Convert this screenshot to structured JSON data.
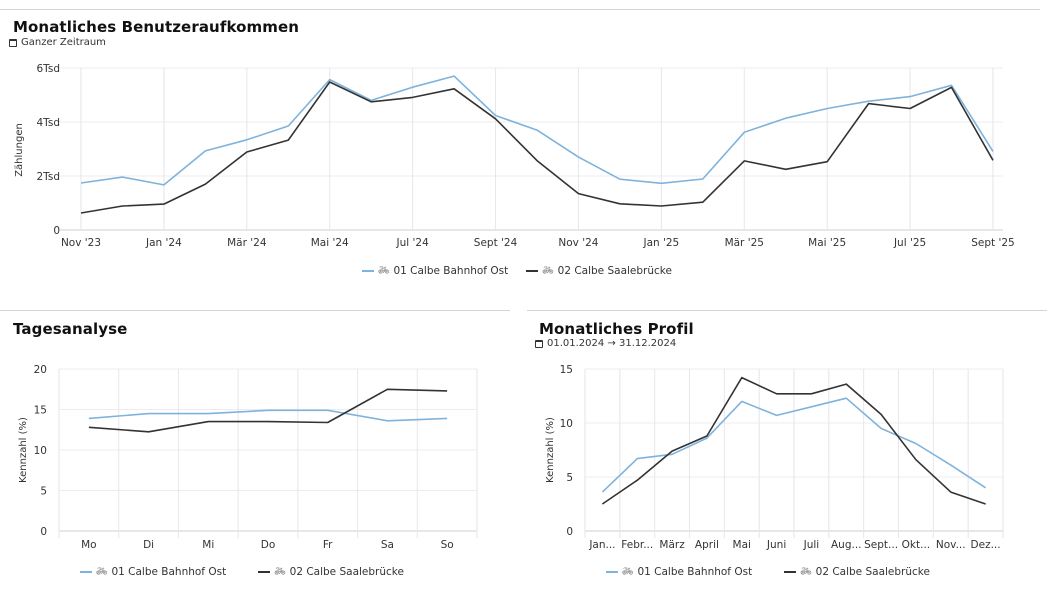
{
  "top_panel": {
    "title": "Monatliches Benutzeraufkommen",
    "subtitle": "Ganzer Zeitraum",
    "subtitle_icon": "calendar-icon"
  },
  "left_panel": {
    "title": "Tagesanalyse"
  },
  "right_panel": {
    "title": "Monatliches Profil",
    "subtitle": "01.01.2024 → 31.12.2024",
    "subtitle_icon": "calendar-icon"
  },
  "colors": {
    "series1": "#7fb3dc",
    "series2": "#333333"
  },
  "legend": [
    {
      "label": "01 Calbe Bahnhof Ost",
      "icon": "bicycle-icon"
    },
    {
      "label": "02 Calbe Saalebrücke",
      "icon": "bicycle-icon"
    }
  ],
  "chart_data": [
    {
      "type": "line",
      "title": "Monatliches Benutzeraufkommen",
      "xlabel": "",
      "ylabel": "Zählungen",
      "ylim": [
        0,
        6000
      ],
      "yticks": [
        0,
        2000,
        4000,
        6000
      ],
      "ytick_labels": [
        "0",
        "2Tsd",
        "4Tsd",
        "6Tsd"
      ],
      "x": [
        "Nov '23",
        "Dez '23",
        "Jan '24",
        "Feb '24",
        "Mär '24",
        "Apr '24",
        "Mai '24",
        "Jun '24",
        "Jul '24",
        "Aug '24",
        "Sept '24",
        "Okt '24",
        "Nov '24",
        "Dez '24",
        "Jan '25",
        "Feb '25",
        "Mär '25",
        "Apr '25",
        "Mai '25",
        "Jun '25",
        "Jul '25",
        "Aug '25",
        "Sept '25"
      ],
      "xtick_labels": [
        "Nov '23",
        "",
        "Jan '24",
        "",
        "Mär '24",
        "",
        "Mai '24",
        "",
        "Jul '24",
        "",
        "Sept '24",
        "",
        "Nov '24",
        "",
        "Jan '25",
        "",
        "Mär '25",
        "",
        "Mai '25",
        "",
        "Jul '25",
        "",
        "Sept '25"
      ],
      "grid": true,
      "legend_position": "bottom-center",
      "series": [
        {
          "name": "01 Calbe Bahnhof Ost",
          "values": [
            1740,
            1960,
            1670,
            2930,
            3340,
            3850,
            5570,
            4800,
            5290,
            5700,
            4240,
            3700,
            2700,
            1880,
            1730,
            1890,
            3620,
            4140,
            4500,
            4770,
            4940,
            5360,
            2910
          ]
        },
        {
          "name": "02 Calbe Saalebrücke",
          "values": [
            630,
            890,
            960,
            1700,
            2890,
            3330,
            5480,
            4750,
            4910,
            5230,
            4120,
            2570,
            1350,
            970,
            890,
            1030,
            2560,
            2250,
            2530,
            4680,
            4500,
            5280,
            2580
          ]
        }
      ]
    },
    {
      "type": "line",
      "title": "Tagesanalyse",
      "xlabel": "",
      "ylabel": "Kennzahl (%)",
      "ylim": [
        0,
        20
      ],
      "yticks": [
        0,
        5,
        10,
        15,
        20
      ],
      "x": [
        "Mo",
        "Di",
        "Mi",
        "Do",
        "Fr",
        "Sa",
        "So"
      ],
      "grid": true,
      "legend_position": "bottom-left",
      "series": [
        {
          "name": "01 Calbe Bahnhof Ost",
          "values": [
            13.9,
            14.5,
            14.5,
            14.9,
            14.9,
            13.6,
            13.9
          ]
        },
        {
          "name": "02 Calbe Saalebrücke",
          "values": [
            12.8,
            12.25,
            13.5,
            13.5,
            13.4,
            17.5,
            17.3
          ]
        }
      ]
    },
    {
      "type": "line",
      "title": "Monatliches Profil",
      "xlabel": "",
      "ylabel": "Kennzahl (%)",
      "ylim": [
        0,
        15
      ],
      "yticks": [
        0,
        5,
        10,
        15
      ],
      "x": [
        "Jan...",
        "Febr...",
        "März",
        "April",
        "Mai",
        "Juni",
        "Juli",
        "Aug...",
        "Sept...",
        "Okt...",
        "Nov...",
        "Dez..."
      ],
      "grid": true,
      "legend_position": "bottom-center",
      "series": [
        {
          "name": "01 Calbe Bahnhof Ost",
          "values": [
            3.6,
            6.7,
            7.1,
            8.6,
            12.0,
            10.7,
            11.5,
            12.3,
            9.5,
            8.1,
            6.1,
            4.0
          ]
        },
        {
          "name": "02 Calbe Saalebrücke",
          "values": [
            2.5,
            4.7,
            7.4,
            8.8,
            14.2,
            12.7,
            12.7,
            13.6,
            10.8,
            6.6,
            3.6,
            2.5
          ]
        }
      ]
    }
  ]
}
